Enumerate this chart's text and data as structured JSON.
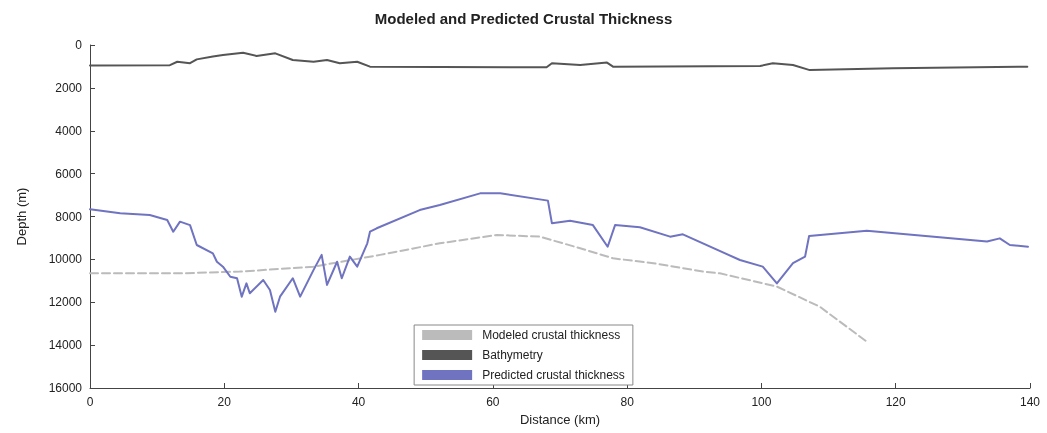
{
  "chart_data": {
    "type": "line",
    "title": "Modeled and Predicted Crustal Thickness",
    "xlabel": "Distance (km)",
    "ylabel": "Depth (m)",
    "xlim": [
      0,
      140
    ],
    "xticks": [
      0,
      20,
      40,
      60,
      80,
      100,
      120,
      140
    ],
    "ylim": [
      16000,
      0
    ],
    "yticks": [
      0,
      2000,
      4000,
      6000,
      8000,
      10000,
      12000,
      14000,
      16000
    ],
    "grid": false,
    "legend": "bottom",
    "marker": "none",
    "series": [
      {
        "name": "Modeled crustal thickness",
        "color": "#bbbbbb",
        "line_style": "dashed",
        "x": [
          0,
          13.4,
          22.3,
          33.3,
          43.2,
          52.1,
          60.6,
          67,
          73,
          77.9,
          83.9,
          91.3,
          93.8,
          102.3,
          108.7,
          115.7
        ],
        "values": [
          10650,
          10650,
          10570,
          10340,
          9790,
          9250,
          8860,
          8940,
          9480,
          9950,
          10180,
          10570,
          10650,
          11270,
          12210,
          13840
        ]
      },
      {
        "name": "Bathymetry",
        "color": "#555555",
        "line_style": "solid",
        "x": [
          0,
          11.9,
          13,
          14.9,
          15.9,
          18.3,
          19.8,
          22.8,
          24.8,
          27.6,
          30.2,
          33.3,
          35.3,
          37.2,
          39.8,
          41.7,
          68,
          68.8,
          73,
          77,
          77.9,
          99.8,
          101.7,
          104.7,
          107.2,
          119.6,
          139.6
        ],
        "values": [
          960,
          940,
          780,
          850,
          670,
          540,
          470,
          360,
          510,
          390,
          700,
          780,
          700,
          850,
          780,
          1010,
          1040,
          850,
          930,
          820,
          1010,
          980,
          850,
          930,
          1170,
          1090,
          1010
        ]
      },
      {
        "name": "Predicted crustal thickness",
        "color": "#6f73c0",
        "line_style": "solid",
        "x": [
          0,
          4.5,
          8.9,
          11.5,
          12.4,
          13.4,
          14.9,
          15.9,
          18.3,
          18.9,
          19.8,
          20.9,
          21.9,
          22.6,
          23.3,
          23.8,
          25.8,
          26.8,
          27.6,
          28.3,
          30.2,
          31.3,
          33.3,
          34.5,
          35.3,
          36.8,
          37.5,
          38.7,
          39.8,
          41.3,
          41.7,
          42.7,
          49.1,
          52.1,
          58.1,
          61.1,
          68.2,
          68.8,
          71.5,
          74.9,
          77.1,
          78.2,
          81.9,
          86.4,
          88.3,
          96.8,
          100.2,
          102.3,
          104.7,
          106.5,
          107.1,
          115.7,
          133.6,
          135.5,
          137,
          139.7
        ],
        "values": [
          7660,
          7850,
          7930,
          8160,
          8710,
          8240,
          8400,
          9330,
          9720,
          10110,
          10340,
          10810,
          10880,
          11740,
          11120,
          11580,
          10960,
          11430,
          12440,
          11740,
          10880,
          11740,
          10490,
          9790,
          11190,
          10110,
          10880,
          9870,
          10340,
          9250,
          8710,
          8550,
          7700,
          7460,
          6920,
          6920,
          7260,
          8320,
          8200,
          8400,
          9410,
          8400,
          8500,
          8940,
          8830,
          10030,
          10340,
          11120,
          10180,
          9870,
          8910,
          8660,
          9170,
          9020,
          9330,
          9410
        ]
      }
    ]
  }
}
